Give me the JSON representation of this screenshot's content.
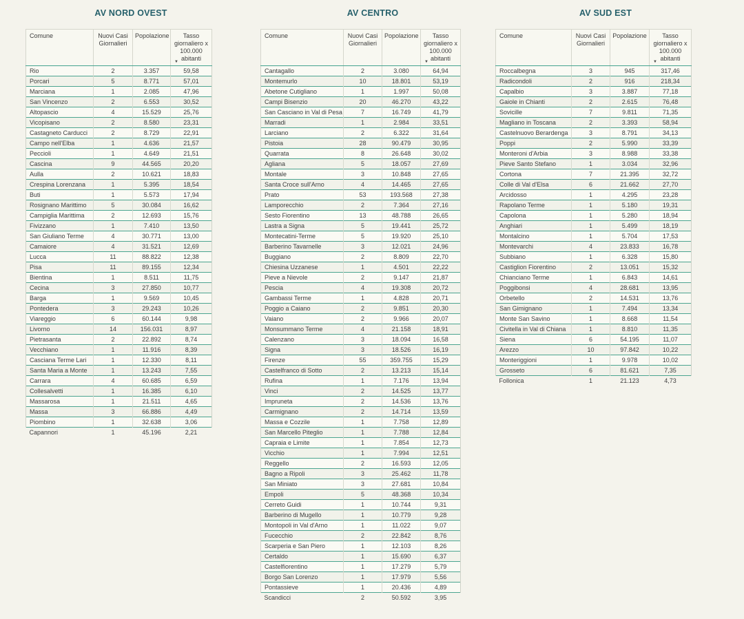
{
  "colors": {
    "page_background": "#f4f3ec",
    "row_separator_teal": "#43a28e",
    "column_separator_gray": "#d5d6cc",
    "title_teal": "#26606b",
    "text": "#3d3d3d"
  },
  "icons": {
    "sort_descending": "▼"
  },
  "sort": {
    "column": "Tasso giornaliero x 100.000 abitanti",
    "direction": "descending"
  },
  "chart_data": [
    {
      "type": "table",
      "title": "AV NORD OVEST",
      "columns": [
        "Comune",
        "Nuovi Casi Giornalieri",
        "Popolazione",
        "Tasso giornaliero x 100.000 abitanti"
      ],
      "rows": [
        [
          "Rio",
          "2",
          "3.357",
          "59,58"
        ],
        [
          "Porcari",
          "5",
          "8.771",
          "57,01"
        ],
        [
          "Marciana",
          "1",
          "2.085",
          "47,96"
        ],
        [
          "San Vincenzo",
          "2",
          "6.553",
          "30,52"
        ],
        [
          "Altopascio",
          "4",
          "15.529",
          "25,76"
        ],
        [
          "Vicopisano",
          "2",
          "8.580",
          "23,31"
        ],
        [
          "Castagneto Carducci",
          "2",
          "8.729",
          "22,91"
        ],
        [
          "Campo nell'Elba",
          "1",
          "4.636",
          "21,57"
        ],
        [
          "Peccioli",
          "1",
          "4.649",
          "21,51"
        ],
        [
          "Cascina",
          "9",
          "44.565",
          "20,20"
        ],
        [
          "Aulla",
          "2",
          "10.621",
          "18,83"
        ],
        [
          "Crespina Lorenzana",
          "1",
          "5.395",
          "18,54"
        ],
        [
          "Buti",
          "1",
          "5.573",
          "17,94"
        ],
        [
          "Rosignano Marittimo",
          "5",
          "30.084",
          "16,62"
        ],
        [
          "Campiglia Marittima",
          "2",
          "12.693",
          "15,76"
        ],
        [
          "Fivizzano",
          "1",
          "7.410",
          "13,50"
        ],
        [
          "San Giuliano Terme",
          "4",
          "30.771",
          "13,00"
        ],
        [
          "Camaiore",
          "4",
          "31.521",
          "12,69"
        ],
        [
          "Lucca",
          "11",
          "88.822",
          "12,38"
        ],
        [
          "Pisa",
          "11",
          "89.155",
          "12,34"
        ],
        [
          "Bientina",
          "1",
          "8.511",
          "11,75"
        ],
        [
          "Cecina",
          "3",
          "27.850",
          "10,77"
        ],
        [
          "Barga",
          "1",
          "9.569",
          "10,45"
        ],
        [
          "Pontedera",
          "3",
          "29.243",
          "10,26"
        ],
        [
          "Viareggio",
          "6",
          "60.144",
          "9,98"
        ],
        [
          "Livorno",
          "14",
          "156.031",
          "8,97"
        ],
        [
          "Pietrasanta",
          "2",
          "22.892",
          "8,74"
        ],
        [
          "Vecchiano",
          "1",
          "11.916",
          "8,39"
        ],
        [
          "Casciana Terme Lari",
          "1",
          "12.330",
          "8,11"
        ],
        [
          "Santa Maria a Monte",
          "1",
          "13.243",
          "7,55"
        ],
        [
          "Carrara",
          "4",
          "60.685",
          "6,59"
        ],
        [
          "Collesalvetti",
          "1",
          "16.385",
          "6,10"
        ],
        [
          "Massarosa",
          "1",
          "21.511",
          "4,65"
        ],
        [
          "Massa",
          "3",
          "66.886",
          "4,49"
        ],
        [
          "Piombino",
          "1",
          "32.638",
          "3,06"
        ],
        [
          "Capannori",
          "1",
          "45.196",
          "2,21"
        ]
      ]
    },
    {
      "type": "table",
      "title": "AV CENTRO",
      "columns": [
        "Comune",
        "Nuovi Casi Giornalieri",
        "Popolazione",
        "Tasso giornaliero x 100.000 abitanti"
      ],
      "rows": [
        [
          "Cantagallo",
          "2",
          "3.080",
          "64,94"
        ],
        [
          "Montemurlo",
          "10",
          "18.801",
          "53,19"
        ],
        [
          "Abetone Cutigliano",
          "1",
          "1.997",
          "50,08"
        ],
        [
          "Campi Bisenzio",
          "20",
          "46.270",
          "43,22"
        ],
        [
          "San Casciano in Val di Pesa",
          "7",
          "16.749",
          "41,79"
        ],
        [
          "Marradi",
          "1",
          "2.984",
          "33,51"
        ],
        [
          "Larciano",
          "2",
          "6.322",
          "31,64"
        ],
        [
          "Pistoia",
          "28",
          "90.479",
          "30,95"
        ],
        [
          "Quarrata",
          "8",
          "26.648",
          "30,02"
        ],
        [
          "Agliana",
          "5",
          "18.057",
          "27,69"
        ],
        [
          "Montale",
          "3",
          "10.848",
          "27,65"
        ],
        [
          "Santa Croce sull'Arno",
          "4",
          "14.465",
          "27,65"
        ],
        [
          "Prato",
          "53",
          "193.568",
          "27,38"
        ],
        [
          "Lamporecchio",
          "2",
          "7.364",
          "27,16"
        ],
        [
          "Sesto Fiorentino",
          "13",
          "48.788",
          "26,65"
        ],
        [
          "Lastra a Signa",
          "5",
          "19.441",
          "25,72"
        ],
        [
          "Montecatini-Terme",
          "5",
          "19.920",
          "25,10"
        ],
        [
          "Barberino Tavarnelle",
          "3",
          "12.021",
          "24,96"
        ],
        [
          "Buggiano",
          "2",
          "8.809",
          "22,70"
        ],
        [
          "Chiesina Uzzanese",
          "1",
          "4.501",
          "22,22"
        ],
        [
          "Pieve a Nievole",
          "2",
          "9.147",
          "21,87"
        ],
        [
          "Pescia",
          "4",
          "19.308",
          "20,72"
        ],
        [
          "Gambassi Terme",
          "1",
          "4.828",
          "20,71"
        ],
        [
          "Poggio a Caiano",
          "2",
          "9.851",
          "20,30"
        ],
        [
          "Vaiano",
          "2",
          "9.966",
          "20,07"
        ],
        [
          "Monsummano Terme",
          "4",
          "21.158",
          "18,91"
        ],
        [
          "Calenzano",
          "3",
          "18.094",
          "16,58"
        ],
        [
          "Signa",
          "3",
          "18.526",
          "16,19"
        ],
        [
          "Firenze",
          "55",
          "359.755",
          "15,29"
        ],
        [
          "Castelfranco di Sotto",
          "2",
          "13.213",
          "15,14"
        ],
        [
          "Rufina",
          "1",
          "7.176",
          "13,94"
        ],
        [
          "Vinci",
          "2",
          "14.525",
          "13,77"
        ],
        [
          "Impruneta",
          "2",
          "14.536",
          "13,76"
        ],
        [
          "Carmignano",
          "2",
          "14.714",
          "13,59"
        ],
        [
          "Massa e Cozzile",
          "1",
          "7.758",
          "12,89"
        ],
        [
          "San Marcello Piteglio",
          "1",
          "7.788",
          "12,84"
        ],
        [
          "Capraia e Limite",
          "1",
          "7.854",
          "12,73"
        ],
        [
          "Vicchio",
          "1",
          "7.994",
          "12,51"
        ],
        [
          "Reggello",
          "2",
          "16.593",
          "12,05"
        ],
        [
          "Bagno a Ripoli",
          "3",
          "25.462",
          "11,78"
        ],
        [
          "San Miniato",
          "3",
          "27.681",
          "10,84"
        ],
        [
          "Empoli",
          "5",
          "48.368",
          "10,34"
        ],
        [
          "Cerreto Guidi",
          "1",
          "10.744",
          "9,31"
        ],
        [
          "Barberino di Mugello",
          "1",
          "10.779",
          "9,28"
        ],
        [
          "Montopoli in Val d'Arno",
          "1",
          "11.022",
          "9,07"
        ],
        [
          "Fucecchio",
          "2",
          "22.842",
          "8,76"
        ],
        [
          "Scarperia e San Piero",
          "1",
          "12.103",
          "8,26"
        ],
        [
          "Certaldo",
          "1",
          "15.690",
          "6,37"
        ],
        [
          "Castelfiorentino",
          "1",
          "17.279",
          "5,79"
        ],
        [
          "Borgo San Lorenzo",
          "1",
          "17.979",
          "5,56"
        ],
        [
          "Pontassieve",
          "1",
          "20.436",
          "4,89"
        ],
        [
          "Scandicci",
          "2",
          "50.592",
          "3,95"
        ]
      ]
    },
    {
      "type": "table",
      "title": "AV SUD EST",
      "columns": [
        "Comune",
        "Nuovi Casi Giornalieri",
        "Popolazione",
        "Tasso giornaliero x 100.000 abitanti"
      ],
      "rows": [
        [
          "Roccalbegna",
          "3",
          "945",
          "317,46"
        ],
        [
          "Radicondoli",
          "2",
          "916",
          "218,34"
        ],
        [
          "Capalbio",
          "3",
          "3.887",
          "77,18"
        ],
        [
          "Gaiole in Chianti",
          "2",
          "2.615",
          "76,48"
        ],
        [
          "Sovicille",
          "7",
          "9.811",
          "71,35"
        ],
        [
          "Magliano in Toscana",
          "2",
          "3.393",
          "58,94"
        ],
        [
          "Castelnuovo Berardenga",
          "3",
          "8.791",
          "34,13"
        ],
        [
          "Poppi",
          "2",
          "5.990",
          "33,39"
        ],
        [
          "Monteroni d'Arbia",
          "3",
          "8.988",
          "33,38"
        ],
        [
          "Pieve Santo Stefano",
          "1",
          "3.034",
          "32,96"
        ],
        [
          "Cortona",
          "7",
          "21.395",
          "32,72"
        ],
        [
          "Colle di Val d'Elsa",
          "6",
          "21.662",
          "27,70"
        ],
        [
          "Arcidosso",
          "1",
          "4.295",
          "23,28"
        ],
        [
          "Rapolano Terme",
          "1",
          "5.180",
          "19,31"
        ],
        [
          "Capolona",
          "1",
          "5.280",
          "18,94"
        ],
        [
          "Anghiari",
          "1",
          "5.499",
          "18,19"
        ],
        [
          "Montalcino",
          "1",
          "5.704",
          "17,53"
        ],
        [
          "Montevarchi",
          "4",
          "23.833",
          "16,78"
        ],
        [
          "Subbiano",
          "1",
          "6.328",
          "15,80"
        ],
        [
          "Castiglion Fiorentino",
          "2",
          "13.051",
          "15,32"
        ],
        [
          "Chianciano Terme",
          "1",
          "6.843",
          "14,61"
        ],
        [
          "Poggibonsi",
          "4",
          "28.681",
          "13,95"
        ],
        [
          "Orbetello",
          "2",
          "14.531",
          "13,76"
        ],
        [
          "San Gimignano",
          "1",
          "7.494",
          "13,34"
        ],
        [
          "Monte San Savino",
          "1",
          "8.668",
          "11,54"
        ],
        [
          "Civitella in Val di Chiana",
          "1",
          "8.810",
          "11,35"
        ],
        [
          "Siena",
          "6",
          "54.195",
          "11,07"
        ],
        [
          "Arezzo",
          "10",
          "97.842",
          "10,22"
        ],
        [
          "Monteriggioni",
          "1",
          "9.978",
          "10,02"
        ],
        [
          "Grosseto",
          "6",
          "81.621",
          "7,35"
        ],
        [
          "Follonica",
          "1",
          "21.123",
          "4,73"
        ]
      ]
    }
  ]
}
